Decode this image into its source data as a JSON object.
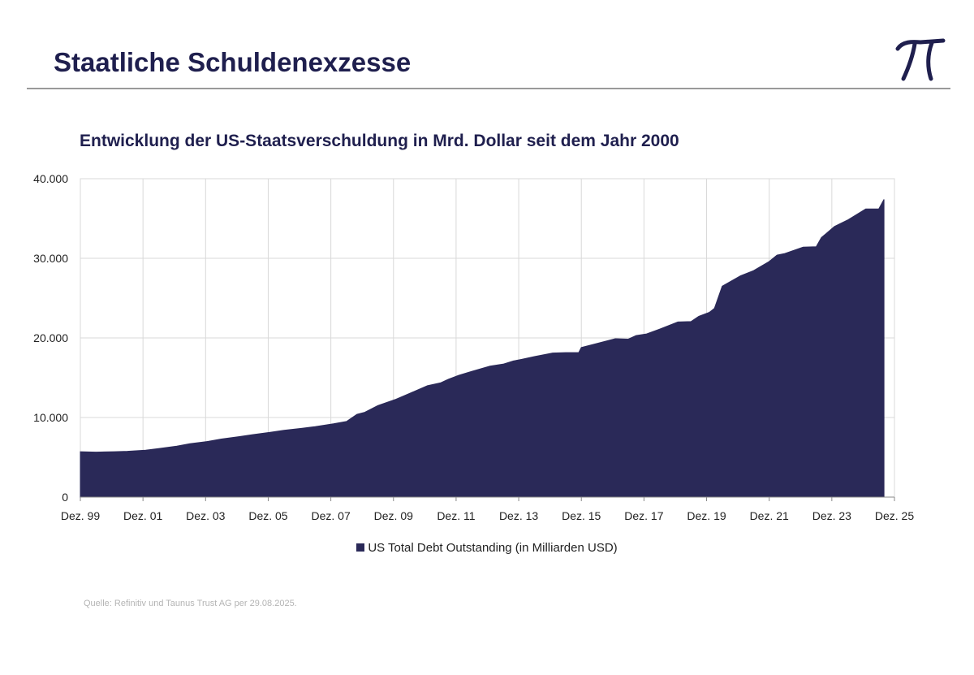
{
  "header": {
    "title": "Staatliche Schuldenexzesse",
    "logo": "pi-icon"
  },
  "footer": {
    "source": "Quelle: Refinitiv und Taunus Trust AG per 29.08.2025."
  },
  "colors": {
    "area": "#2a2958",
    "title": "#1f1f4e",
    "grid": "#d9d9d9"
  },
  "chart_data": {
    "type": "area",
    "title": "Entwicklung der US-Staatsverschuldung in Mrd. Dollar seit dem Jahr 2000",
    "xlabel": "",
    "ylabel": "",
    "x_ticks": [
      "Dez. 99",
      "Dez. 01",
      "Dez. 03",
      "Dez. 05",
      "Dez. 07",
      "Dez. 09",
      "Dez. 11",
      "Dez. 13",
      "Dez. 15",
      "Dez. 17",
      "Dez. 19",
      "Dez. 21",
      "Dez. 23",
      "Dez. 25"
    ],
    "y_ticks": [
      "0",
      "10.000",
      "20.000",
      "30.000",
      "40.000"
    ],
    "ylim": [
      0,
      40000
    ],
    "xlim": [
      "1999-12",
      "2025-12"
    ],
    "grid": true,
    "legend": "bottom",
    "series": [
      {
        "name": "US Total Debt Outstanding (in Milliarden USD)",
        "points": [
          [
            "1999-12",
            5700
          ],
          [
            "2000-06",
            5650
          ],
          [
            "2001-01",
            5700
          ],
          [
            "2001-06",
            5750
          ],
          [
            "2002-01",
            5900
          ],
          [
            "2002-06",
            6100
          ],
          [
            "2003-01",
            6400
          ],
          [
            "2003-06",
            6700
          ],
          [
            "2004-01",
            7000
          ],
          [
            "2004-06",
            7300
          ],
          [
            "2005-01",
            7600
          ],
          [
            "2005-06",
            7850
          ],
          [
            "2006-01",
            8150
          ],
          [
            "2006-06",
            8400
          ],
          [
            "2007-01",
            8650
          ],
          [
            "2007-06",
            8850
          ],
          [
            "2008-01",
            9200
          ],
          [
            "2008-06",
            9500
          ],
          [
            "2008-10",
            10400
          ],
          [
            "2009-01",
            10650
          ],
          [
            "2009-06",
            11500
          ],
          [
            "2010-01",
            12300
          ],
          [
            "2010-06",
            13000
          ],
          [
            "2011-01",
            14000
          ],
          [
            "2011-06",
            14350
          ],
          [
            "2011-09",
            14800
          ],
          [
            "2012-01",
            15300
          ],
          [
            "2012-06",
            15800
          ],
          [
            "2013-01",
            16450
          ],
          [
            "2013-06",
            16700
          ],
          [
            "2013-10",
            17100
          ],
          [
            "2014-01",
            17300
          ],
          [
            "2014-06",
            17650
          ],
          [
            "2015-01",
            18100
          ],
          [
            "2015-06",
            18150
          ],
          [
            "2015-11",
            18150
          ],
          [
            "2015-12",
            18800
          ],
          [
            "2016-06",
            19300
          ],
          [
            "2017-01",
            19900
          ],
          [
            "2017-06",
            19850
          ],
          [
            "2017-09",
            20300
          ],
          [
            "2018-01",
            20500
          ],
          [
            "2018-06",
            21100
          ],
          [
            "2019-01",
            22000
          ],
          [
            "2019-06",
            22050
          ],
          [
            "2019-09",
            22700
          ],
          [
            "2020-01",
            23200
          ],
          [
            "2020-03",
            23700
          ],
          [
            "2020-06",
            26500
          ],
          [
            "2021-01",
            27800
          ],
          [
            "2021-06",
            28450
          ],
          [
            "2021-12",
            29600
          ],
          [
            "2022-03",
            30400
          ],
          [
            "2022-06",
            30600
          ],
          [
            "2023-01",
            31400
          ],
          [
            "2023-06",
            31450
          ],
          [
            "2023-08",
            32600
          ],
          [
            "2024-01",
            34000
          ],
          [
            "2024-06",
            34800
          ],
          [
            "2025-01",
            36200
          ],
          [
            "2025-06",
            36200
          ],
          [
            "2025-08",
            37400
          ]
        ]
      }
    ]
  }
}
